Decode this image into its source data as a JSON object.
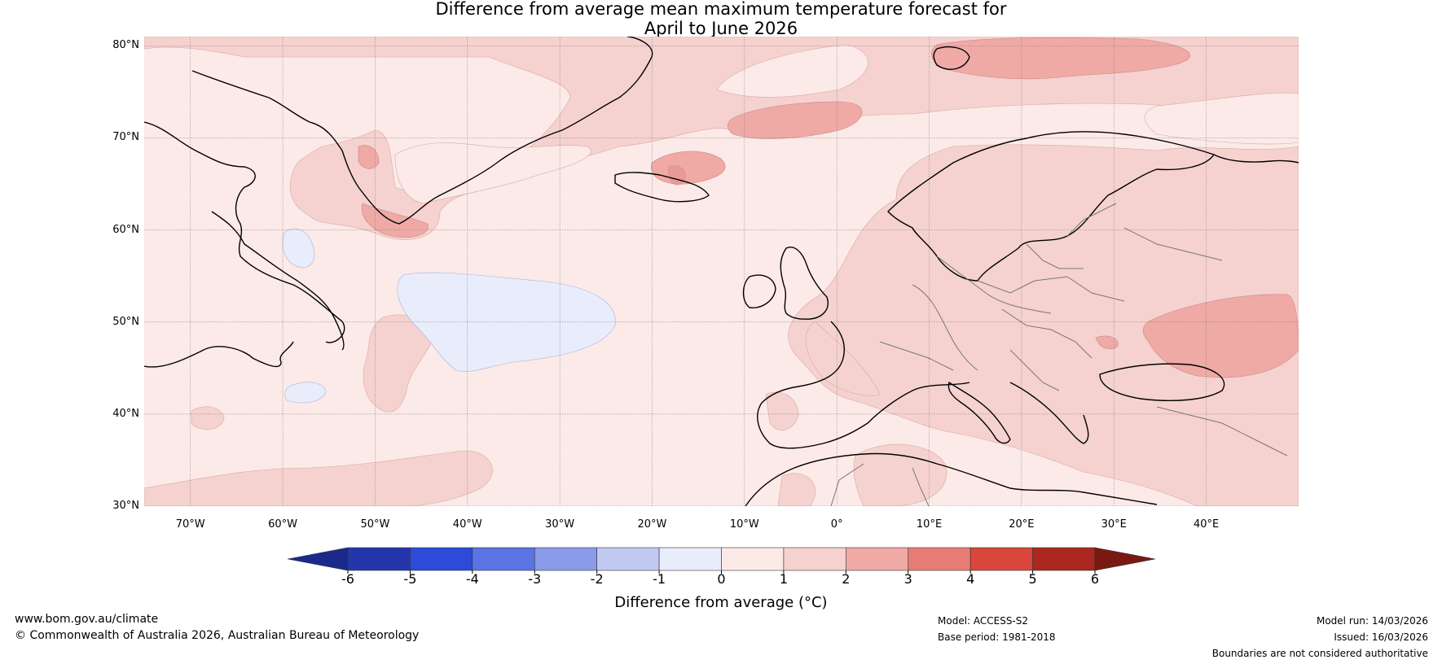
{
  "title": {
    "line1": "Difference from average mean maximum temperature forecast for",
    "line2": "April to June 2026"
  },
  "map": {
    "lat_labels": [
      "80°N",
      "70°N",
      "60°N",
      "50°N",
      "40°N",
      "30°N"
    ],
    "lon_labels": [
      "70°W",
      "60°W",
      "50°W",
      "40°W",
      "30°W",
      "20°W",
      "10°W",
      "0°",
      "10°E",
      "20°E",
      "30°E",
      "40°E"
    ],
    "lat_range": [
      30,
      81
    ],
    "lon_range": [
      -75,
      50
    ]
  },
  "colorbar": {
    "ticks": [
      "-6",
      "-5",
      "-4",
      "-3",
      "-2",
      "-1",
      "0",
      "1",
      "2",
      "3",
      "4",
      "5",
      "6"
    ],
    "colors": [
      "#1a2a8c",
      "#2536ad",
      "#2c4bd9",
      "#5a74e3",
      "#8a9be9",
      "#c1c9f3",
      "#e9ecfb",
      "#fbeae7",
      "#f5d2cf",
      "#efaaa6",
      "#e67c74",
      "#d9473c",
      "#ac271f",
      "#7a1912"
    ],
    "label": "Difference from average (°C)"
  },
  "footer": {
    "url": "www.bom.gov.au/climate",
    "copyright": "© Commonwealth of Australia 2026, Australian Bureau of Meteorology",
    "model": "Model: ACCESS-S2",
    "base_period": "Base period: 1981-2018",
    "model_run": "Model run: 14/03/2026",
    "issued": "Issued: 16/03/2026",
    "disclaimer": "Boundaries are not considered authoritative"
  }
}
